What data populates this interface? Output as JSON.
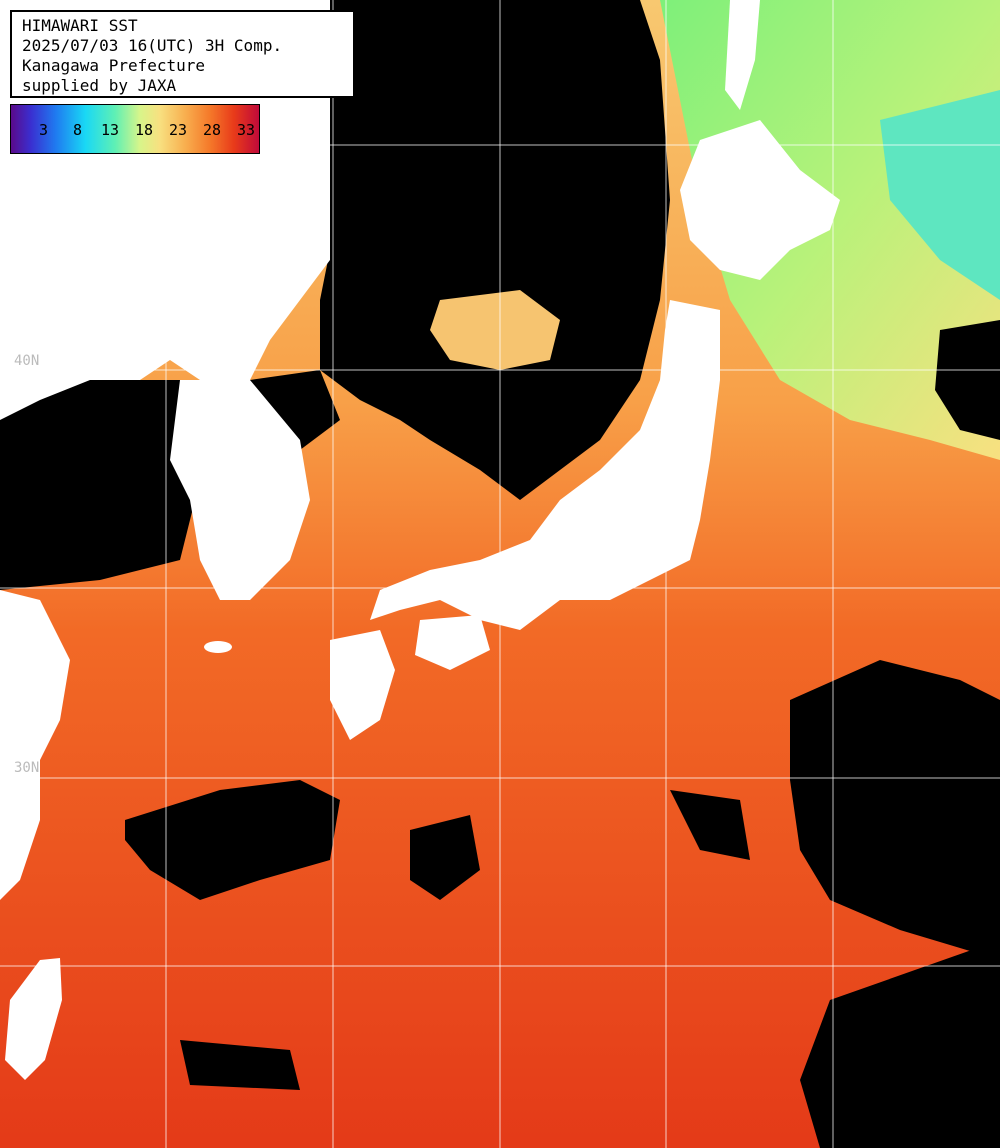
{
  "header": {
    "line1": "HIMAWARI SST",
    "line2": "2025/07/03 16(UTC) 3H Comp.",
    "line3": "Kanagawa Prefecture",
    "line4": "supplied by JAXA"
  },
  "legend": {
    "ticks": [
      "3",
      "8",
      "13",
      "18",
      "23",
      "28",
      "33"
    ],
    "colors": [
      "#5a0a8a",
      "#1f7af0",
      "#19d8f5",
      "#5ff0b4",
      "#f8e080",
      "#f57a2a",
      "#c00a3a"
    ]
  },
  "grid": {
    "lat_labels": [
      "40N",
      "30N"
    ]
  },
  "colors": {
    "land": "#ffffff",
    "cloud": "#000000",
    "warm_sea": "#e8401a",
    "mid_sea": "#f5782a",
    "cool_sea": "#f8d07a",
    "cold_sea": "#7ef0a0"
  }
}
